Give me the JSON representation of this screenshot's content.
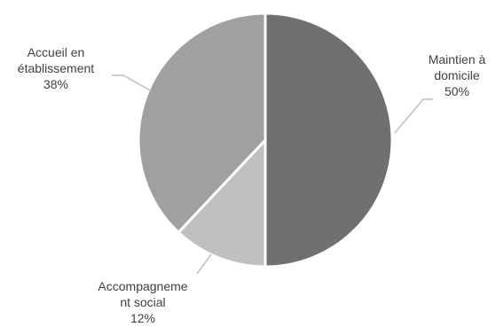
{
  "chart_data": {
    "type": "pie",
    "title": "",
    "slices": [
      {
        "label_lines": [
          "Maintien à",
          "domicile"
        ],
        "value_label": "50%",
        "value": 50,
        "color": "#707070"
      },
      {
        "label_lines": [
          "Accompagneme",
          "nt social"
        ],
        "value_label": "12%",
        "value": 12,
        "color": "#c0c0c0"
      },
      {
        "label_lines": [
          "Accueil en",
          "établissement"
        ],
        "value_label": "38%",
        "value": 38,
        "color": "#a0a0a0"
      }
    ],
    "start_angle": "12 o'clock",
    "direction": "clockwise",
    "legend": "none",
    "label_position": "outside with leader lines",
    "separator_color": "#ffffff",
    "leader_line_color": "#bfbfbf"
  }
}
